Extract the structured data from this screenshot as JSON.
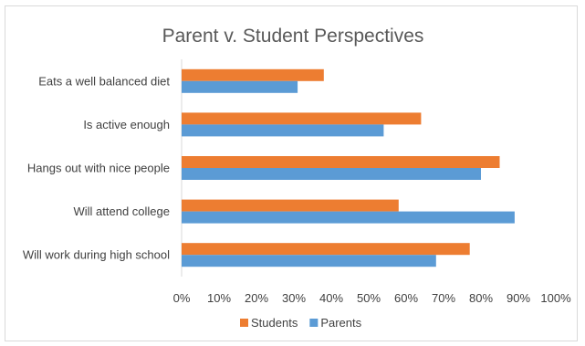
{
  "chart_data": {
    "type": "bar",
    "orientation": "horizontal",
    "title": "Parent v. Student Perspectives",
    "categories": [
      "Eats a well balanced diet",
      "Is active enough",
      "Hangs out with nice people",
      "Will attend college",
      "Will work during high school"
    ],
    "series": [
      {
        "name": "Students",
        "color": "#ED7D31",
        "values": [
          38,
          64,
          85,
          58,
          77
        ]
      },
      {
        "name": "Parents",
        "color": "#5B9BD5",
        "values": [
          31,
          54,
          80,
          89,
          68
        ]
      }
    ],
    "xlim": [
      0,
      100
    ],
    "x_ticks": [
      "0%",
      "10%",
      "20%",
      "30%",
      "40%",
      "50%",
      "60%",
      "70%",
      "80%",
      "90%",
      "100%"
    ],
    "grid": false,
    "legend_position": "bottom"
  }
}
